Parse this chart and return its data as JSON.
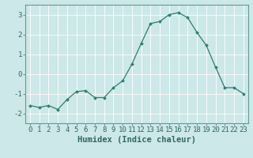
{
  "x": [
    0,
    1,
    2,
    3,
    4,
    5,
    6,
    7,
    8,
    9,
    10,
    11,
    12,
    13,
    14,
    15,
    16,
    17,
    18,
    19,
    20,
    21,
    22,
    23
  ],
  "y": [
    -1.6,
    -1.7,
    -1.6,
    -1.8,
    -1.3,
    -0.9,
    -0.85,
    -1.2,
    -1.2,
    -0.7,
    -0.35,
    0.5,
    1.55,
    2.55,
    2.65,
    3.0,
    3.1,
    2.85,
    2.1,
    1.45,
    0.35,
    -0.7,
    -0.7,
    -1.0
  ],
  "line_color": "#2e7d6e",
  "marker": "D",
  "marker_size": 2.0,
  "bg_color": "#cce8e8",
  "grid_color": "#ffffff",
  "grid_red_color": "#e8c8c8",
  "xlabel": "Humidex (Indice chaleur)",
  "yticks": [
    -2,
    -1,
    0,
    1,
    2,
    3
  ],
  "xticks": [
    0,
    1,
    2,
    3,
    4,
    5,
    6,
    7,
    8,
    9,
    10,
    11,
    12,
    13,
    14,
    15,
    16,
    17,
    18,
    19,
    20,
    21,
    22,
    23
  ],
  "ylim": [
    -2.5,
    3.5
  ],
  "xlim": [
    -0.5,
    23.5
  ],
  "tick_color": "#336666",
  "label_fontsize": 7.5,
  "tick_fontsize": 6.5,
  "spine_color": "#669999"
}
